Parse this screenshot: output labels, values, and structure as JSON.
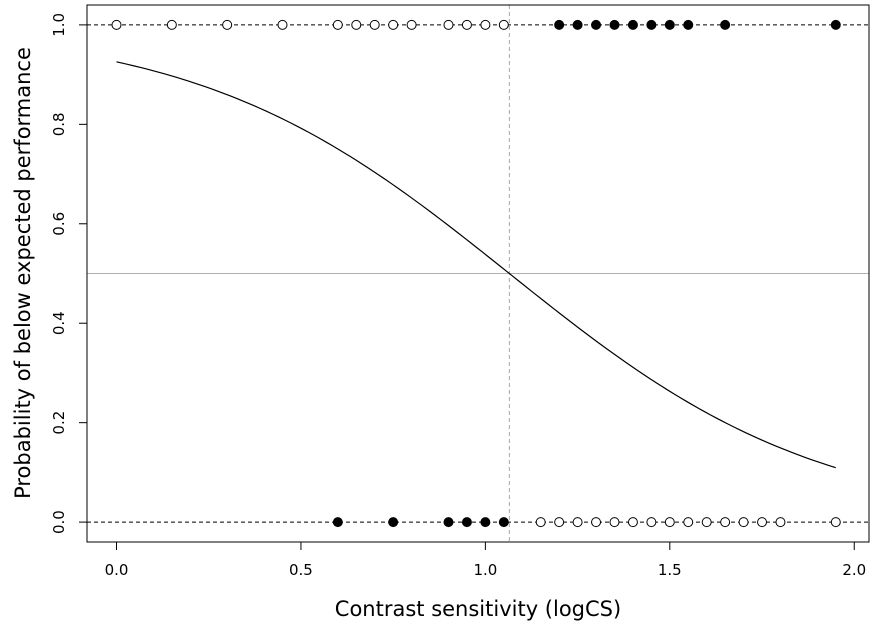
{
  "chart_data": {
    "type": "scatter",
    "title": "",
    "xlabel": "Contrast sensitivity (logCS)",
    "ylabel": "Probability of below expected performance",
    "xlim": [
      -0.08,
      2.04
    ],
    "ylim": [
      -0.04,
      1.04
    ],
    "x_ticks": [
      0.0,
      0.5,
      1.0,
      1.5,
      2.0
    ],
    "x_tick_labels": [
      "0.0",
      "0.5",
      "1.0",
      "1.5",
      "2.0"
    ],
    "y_ticks": [
      0.0,
      0.2,
      0.4,
      0.6,
      0.8,
      1.0
    ],
    "y_tick_labels": [
      "0.0",
      "0.2",
      "0.4",
      "0.6",
      "0.8",
      "1.0"
    ],
    "grid": false,
    "reference_lines": {
      "horizontal_dashed": [
        0,
        1
      ],
      "horizontal_solid_gray": 0.5,
      "vertical_dashed_gray": 1.065
    },
    "series": [
      {
        "marker": "filled",
        "points": [
          {
            "x": 1.2,
            "y": 1
          },
          {
            "x": 1.25,
            "y": 1
          },
          {
            "x": 1.3,
            "y": 1
          },
          {
            "x": 1.35,
            "y": 1
          },
          {
            "x": 1.4,
            "y": 1
          },
          {
            "x": 1.45,
            "y": 1
          },
          {
            "x": 1.5,
            "y": 1
          },
          {
            "x": 1.55,
            "y": 1
          },
          {
            "x": 1.65,
            "y": 1
          },
          {
            "x": 1.95,
            "y": 1
          },
          {
            "x": 0.6,
            "y": 0
          },
          {
            "x": 0.75,
            "y": 0
          },
          {
            "x": 0.9,
            "y": 0
          },
          {
            "x": 0.95,
            "y": 0
          },
          {
            "x": 1.0,
            "y": 0
          },
          {
            "x": 1.05,
            "y": 0
          }
        ]
      },
      {
        "marker": "open",
        "points": [
          {
            "x": 0.0,
            "y": 1
          },
          {
            "x": 0.15,
            "y": 1
          },
          {
            "x": 0.3,
            "y": 1
          },
          {
            "x": 0.45,
            "y": 1
          },
          {
            "x": 0.6,
            "y": 1
          },
          {
            "x": 0.65,
            "y": 1
          },
          {
            "x": 0.7,
            "y": 1
          },
          {
            "x": 0.75,
            "y": 1
          },
          {
            "x": 0.8,
            "y": 1
          },
          {
            "x": 0.9,
            "y": 1
          },
          {
            "x": 0.95,
            "y": 1
          },
          {
            "x": 1.0,
            "y": 1
          },
          {
            "x": 1.05,
            "y": 1
          },
          {
            "x": 1.15,
            "y": 0
          },
          {
            "x": 1.2,
            "y": 0
          },
          {
            "x": 1.25,
            "y": 0
          },
          {
            "x": 1.3,
            "y": 0
          },
          {
            "x": 1.35,
            "y": 0
          },
          {
            "x": 1.4,
            "y": 0
          },
          {
            "x": 1.45,
            "y": 0
          },
          {
            "x": 1.5,
            "y": 0
          },
          {
            "x": 1.55,
            "y": 0
          },
          {
            "x": 1.6,
            "y": 0
          },
          {
            "x": 1.65,
            "y": 0
          },
          {
            "x": 1.7,
            "y": 0
          },
          {
            "x": 1.75,
            "y": 0
          },
          {
            "x": 1.8,
            "y": 0
          },
          {
            "x": 1.95,
            "y": 0
          }
        ]
      },
      {
        "type": "line",
        "curve": "logistic",
        "x_range": [
          0.0,
          1.95
        ],
        "points": [
          {
            "x": 0.0,
            "y": 0.973
          },
          {
            "x": 0.2,
            "y": 0.95
          },
          {
            "x": 0.4,
            "y": 0.905
          },
          {
            "x": 0.6,
            "y": 0.825
          },
          {
            "x": 0.8,
            "y": 0.7
          },
          {
            "x": 1.0,
            "y": 0.545
          },
          {
            "x": 1.065,
            "y": 0.5
          },
          {
            "x": 1.2,
            "y": 0.385
          },
          {
            "x": 1.4,
            "y": 0.245
          },
          {
            "x": 1.6,
            "y": 0.145
          },
          {
            "x": 1.8,
            "y": 0.079
          },
          {
            "x": 1.95,
            "y": 0.047
          }
        ]
      }
    ]
  }
}
